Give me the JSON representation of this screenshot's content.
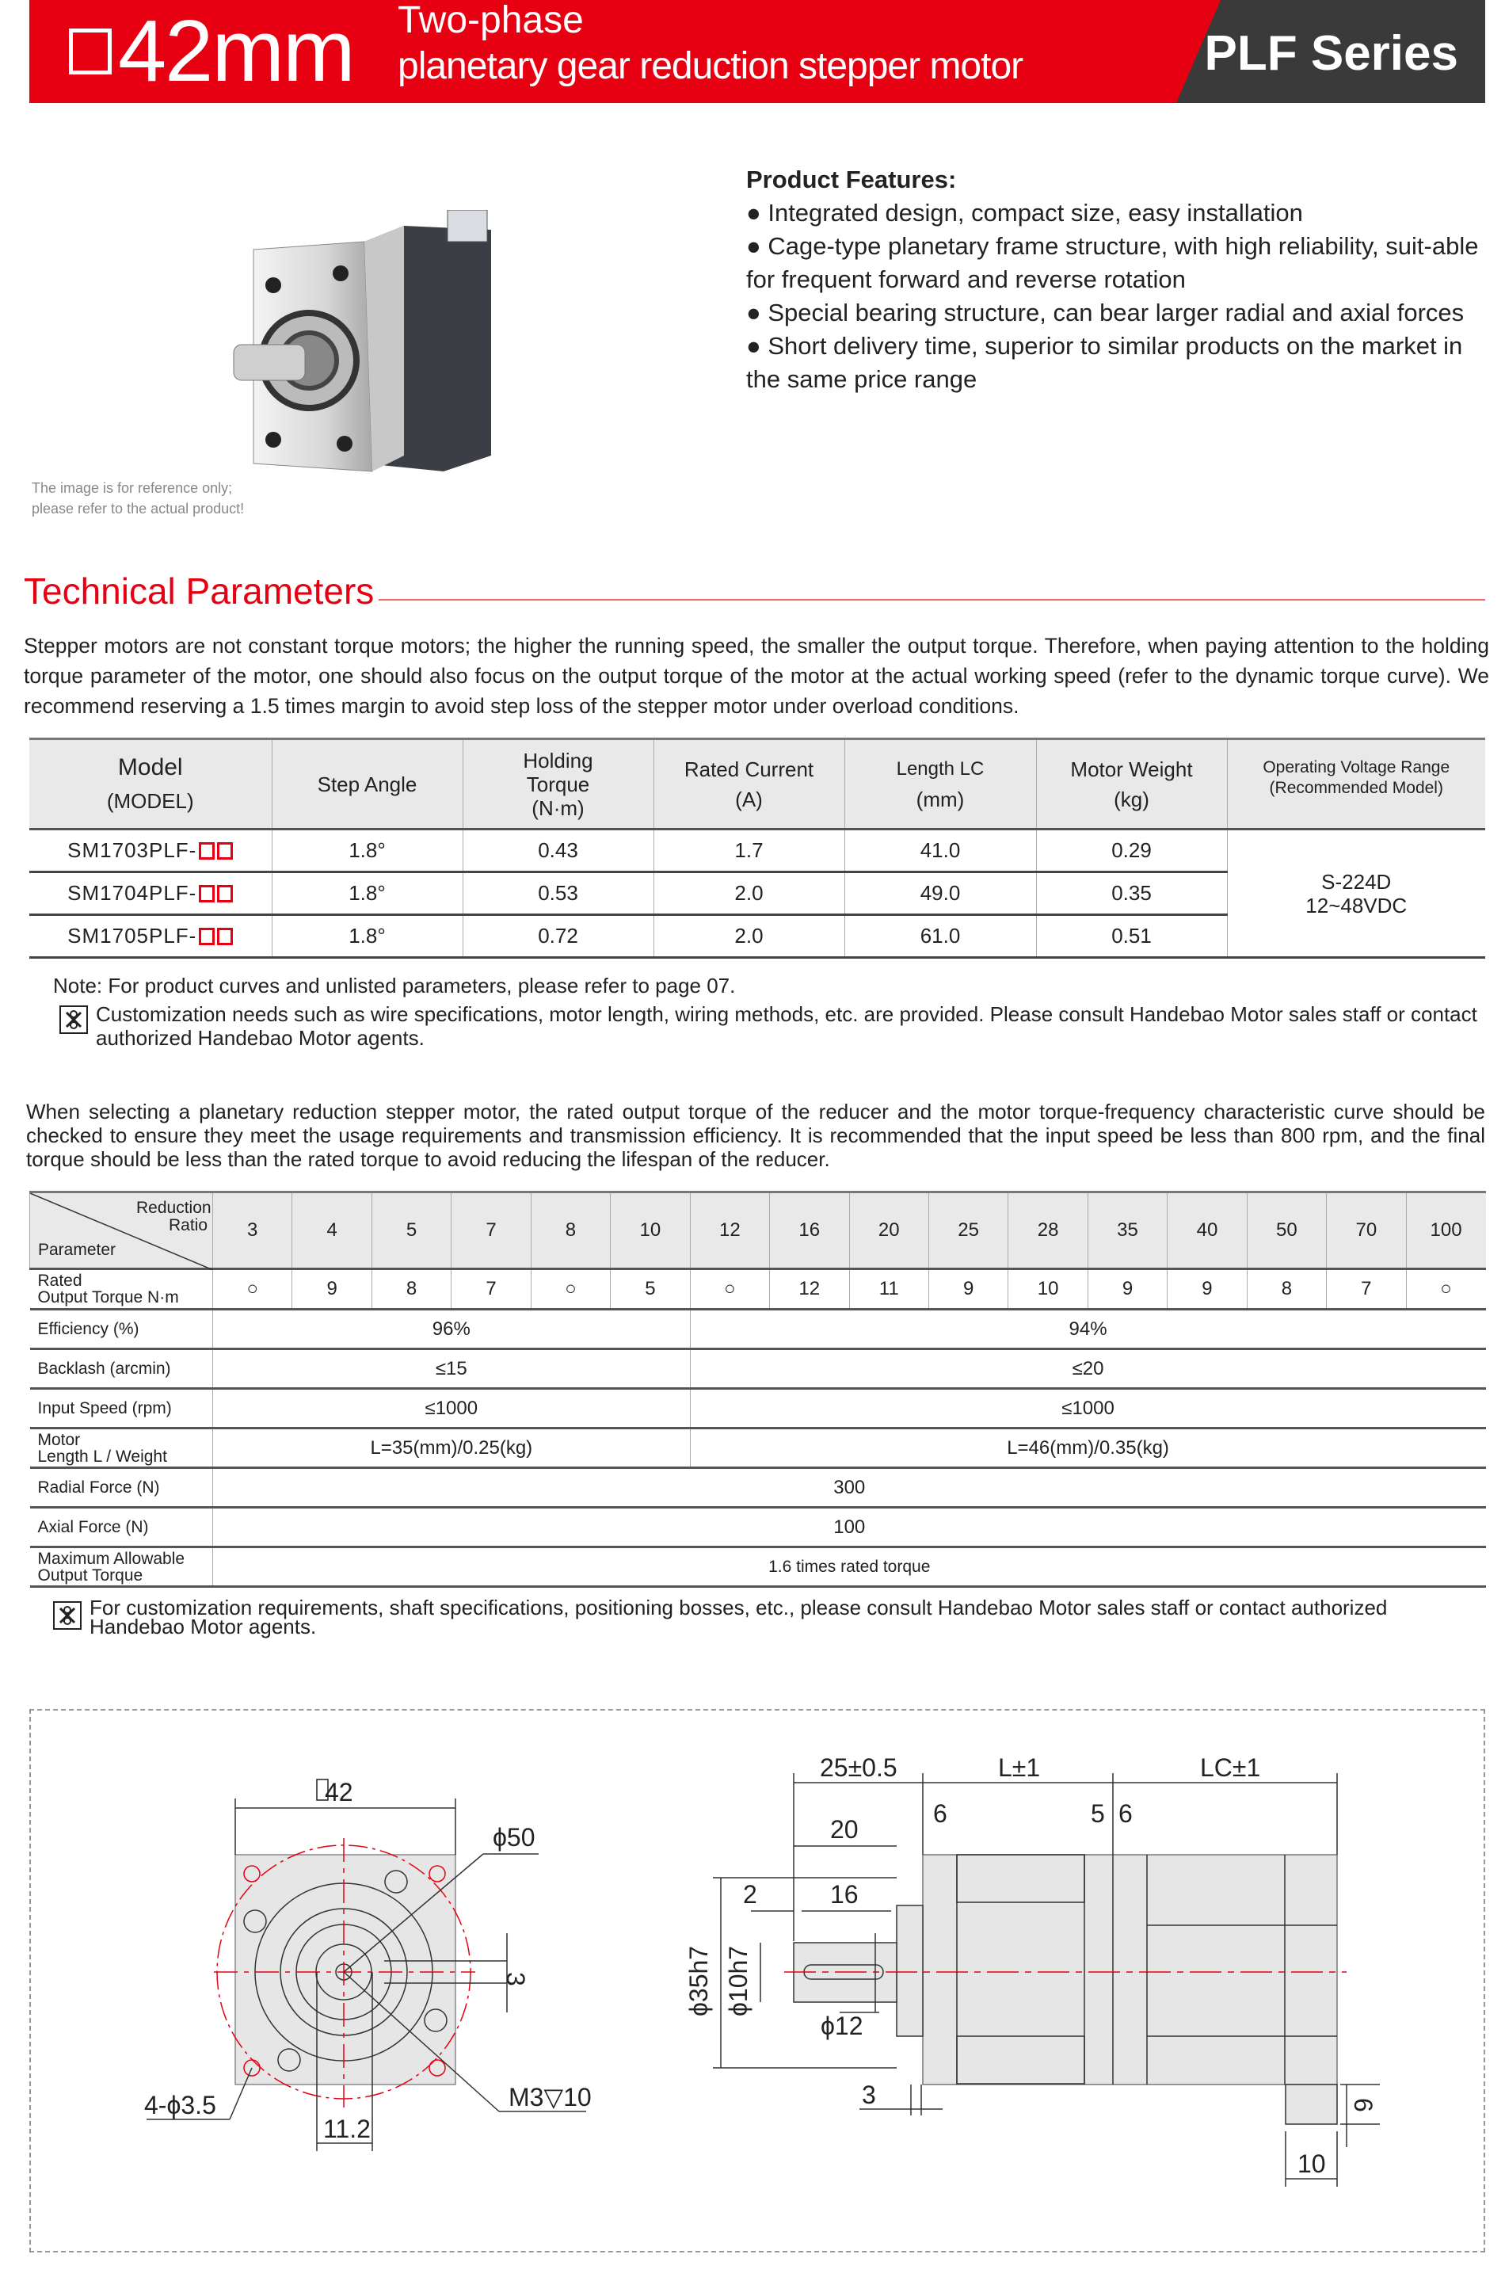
{
  "header": {
    "size": "42mm",
    "title_line1": "Two-phase",
    "title_line2": "planetary gear reduction stepper motor",
    "series": "PLF Series",
    "colors": {
      "brand_red": "#e60012",
      "dark": "#3a3a3a"
    }
  },
  "product": {
    "caption_line1": "The image is for reference only;",
    "caption_line2": "please refer to the actual product!",
    "features_title": "Product Features:",
    "features": [
      "● Integrated design, compact size, easy installation",
      "● Cage-type planetary frame structure, with high reliability, suit-able for frequent forward and reverse rotation",
      "● Special bearing structure, can bear larger radial and axial forces",
      "● Short delivery time, superior to similar products on the market in the same price range"
    ]
  },
  "technical": {
    "title": "Technical Parameters",
    "intro": "Stepper motors are not constant torque motors; the higher the running speed, the smaller the output torque. Therefore, when paying attention to the holding torque parameter of the motor, one should also focus on the output torque of the motor at the actual working speed (refer to the dynamic torque curve). We recommend reserving a 1.5 times margin to avoid step loss of the stepper motor under overload conditions.",
    "spec_table": {
      "headers": [
        {
          "l1": "Model",
          "l2": "(MODEL)"
        },
        {
          "l1": "Step Angle",
          "l2": ""
        },
        {
          "l1": "Holding",
          "l2": "Torque",
          "l3": "(N·m)"
        },
        {
          "l1": "Rated Current",
          "l2": "(A)"
        },
        {
          "l1": "Length LC",
          "l2": "(mm)"
        },
        {
          "l1": "Motor Weight",
          "l2": "(kg)"
        },
        {
          "l1": "Operating Voltage Range",
          "l2": "(Recommended Model)"
        }
      ],
      "rows": [
        {
          "model": "SM1703PLF-",
          "step": "1.8°",
          "torque": "0.43",
          "current": "1.7",
          "length": "41.0",
          "weight": "0.29"
        },
        {
          "model": "SM1704PLF-",
          "step": "1.8°",
          "torque": "0.53",
          "current": "2.0",
          "length": "49.0",
          "weight": "0.35"
        },
        {
          "model": "SM1705PLF-",
          "step": "1.8°",
          "torque": "0.72",
          "current": "2.0",
          "length": "61.0",
          "weight": "0.51"
        }
      ],
      "voltage_model": "S-224D",
      "voltage_range": "12~48VDC"
    },
    "note": "Note: For product curves and unlisted parameters, please refer to page 07.",
    "custom_note": "Customization needs such as wire specifications, motor length, wiring methods, etc. are provided. Please consult Handebao Motor sales staff or contact authorized Handebao Motor agents.",
    "reducer_intro": "When selecting a planetary reduction stepper motor, the rated output torque of the reducer and the motor torque-frequency characteristic curve should be checked to ensure they meet the usage requirements and transmission efficiency. It is recommended that the input speed be less than 800 rpm, and the final torque should be less than the rated torque to avoid reducing the lifespan of the reducer.",
    "ratio_table": {
      "corner_top": "Reduction Ratio",
      "corner_bottom": "Parameter",
      "ratios": [
        "3",
        "4",
        "5",
        "7",
        "8",
        "10",
        "12",
        "16",
        "20",
        "25",
        "28",
        "35",
        "40",
        "50",
        "70",
        "100"
      ],
      "rated_label_l1": "Rated",
      "rated_label_l2": "Output Torque N·m",
      "rated_values": [
        "○",
        "9",
        "8",
        "7",
        "○",
        "5",
        "○",
        "12",
        "11",
        "9",
        "10",
        "9",
        "9",
        "8",
        "7",
        "○"
      ],
      "rows": [
        {
          "label": "Efficiency (%)",
          "low": "96%",
          "high": "94%"
        },
        {
          "label": "Backlash (arcmin)",
          "low": "≤15",
          "high": "≤20"
        },
        {
          "label": "Input Speed (rpm)",
          "low": "≤1000",
          "high": "≤1000"
        },
        {
          "label_l1": "Motor",
          "label_l2": "Length L / Weight",
          "low": "L=35(mm)/0.25(kg)",
          "high": "L=46(mm)/0.35(kg)"
        }
      ],
      "radial_label": "Radial Force (N)",
      "radial": "300",
      "axial_label": "Axial Force (N)",
      "axial": "100",
      "max_label_l1": "Maximum Allowable",
      "max_label_l2": "Output Torque",
      "max": "1.6 times rated torque"
    },
    "custom_note2": "For customization requirements, shaft specifications, positioning bosses, etc., please consult Handebao Motor sales staff or contact authorized Handebao Motor agents."
  },
  "drawing": {
    "front": {
      "square": "42",
      "pcd": "ϕ50",
      "key": "3",
      "holes": "4-ϕ3.5",
      "offset": "11.2",
      "thread": "M3▽10"
    },
    "side": {
      "shaft_len": "25±0.5",
      "gear_len": "L±1",
      "motor_len": "LC±1",
      "d6a": "6",
      "d5": "5",
      "d6b": "6",
      "d20": "20",
      "d2": "2",
      "d16": "16",
      "pilot": "ϕ35h7",
      "shaft": "ϕ10h7",
      "boss": "ϕ12",
      "d3": "3",
      "d6c": "6",
      "d10": "10"
    }
  }
}
